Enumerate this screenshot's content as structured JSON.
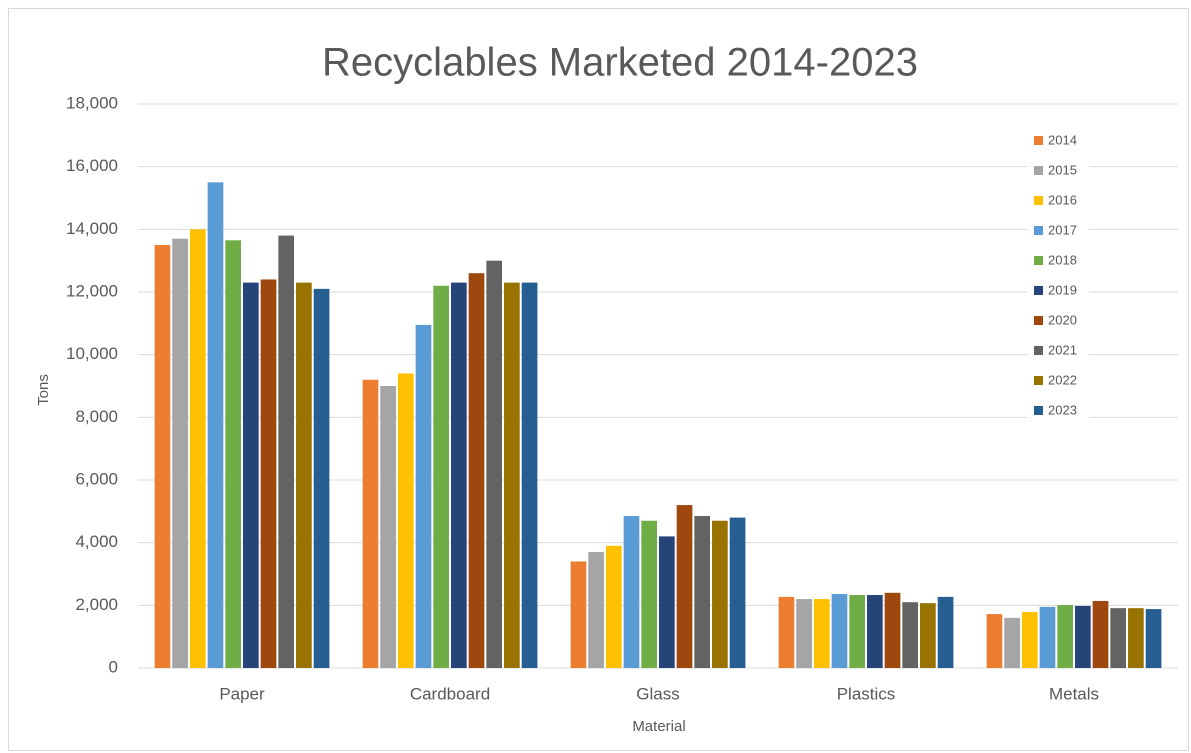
{
  "chart_data": {
    "type": "bar",
    "title": "Recyclables Marketed 2014-2023",
    "x_label": "Material",
    "y_label": "Tons",
    "categories": [
      "Paper",
      "Cardboard",
      "Glass",
      "Plastics",
      "Metals"
    ],
    "series": [
      {
        "name": "2014",
        "color": "#ed7d31",
        "values": [
          13500,
          9200,
          3400,
          2270,
          1720
        ]
      },
      {
        "name": "2015",
        "color": "#a5a5a5",
        "values": [
          13700,
          9000,
          3700,
          2200,
          1600
        ]
      },
      {
        "name": "2016",
        "color": "#ffc000",
        "values": [
          14000,
          9400,
          3900,
          2200,
          1790
        ]
      },
      {
        "name": "2017",
        "color": "#5b9bd5",
        "values": [
          15500,
          10950,
          4850,
          2360,
          1950
        ]
      },
      {
        "name": "2018",
        "color": "#70ad47",
        "values": [
          13650,
          12200,
          4700,
          2330,
          2010
        ]
      },
      {
        "name": "2019",
        "color": "#264478",
        "values": [
          12300,
          12300,
          4200,
          2330,
          1980
        ]
      },
      {
        "name": "2020",
        "color": "#9e480e",
        "values": [
          12400,
          12600,
          5200,
          2400,
          2140
        ]
      },
      {
        "name": "2021",
        "color": "#636363",
        "values": [
          13800,
          13000,
          4850,
          2100,
          1910
        ]
      },
      {
        "name": "2022",
        "color": "#997300",
        "values": [
          12300,
          12300,
          4700,
          2070,
          1910
        ]
      },
      {
        "name": "2023",
        "color": "#255e91",
        "values": [
          12100,
          12300,
          4800,
          2270,
          1880
        ]
      }
    ],
    "ylim": [
      0,
      18000
    ],
    "yticks": [
      0,
      {
        "value": 2000,
        "label": "2,000"
      },
      {
        "value": 4000,
        "label": "4,000"
      },
      {
        "value": 6000,
        "label": "6,000"
      },
      {
        "value": 8000,
        "label": "8,000"
      },
      {
        "value": 10000,
        "label": "10,000"
      },
      {
        "value": 12000,
        "label": "12,000"
      },
      {
        "value": 14000,
        "label": "14,000"
      },
      {
        "value": 16000,
        "label": "16,000"
      },
      {
        "value": 18000,
        "label": "18,000"
      }
    ],
    "grid": true,
    "legend": "right"
  }
}
